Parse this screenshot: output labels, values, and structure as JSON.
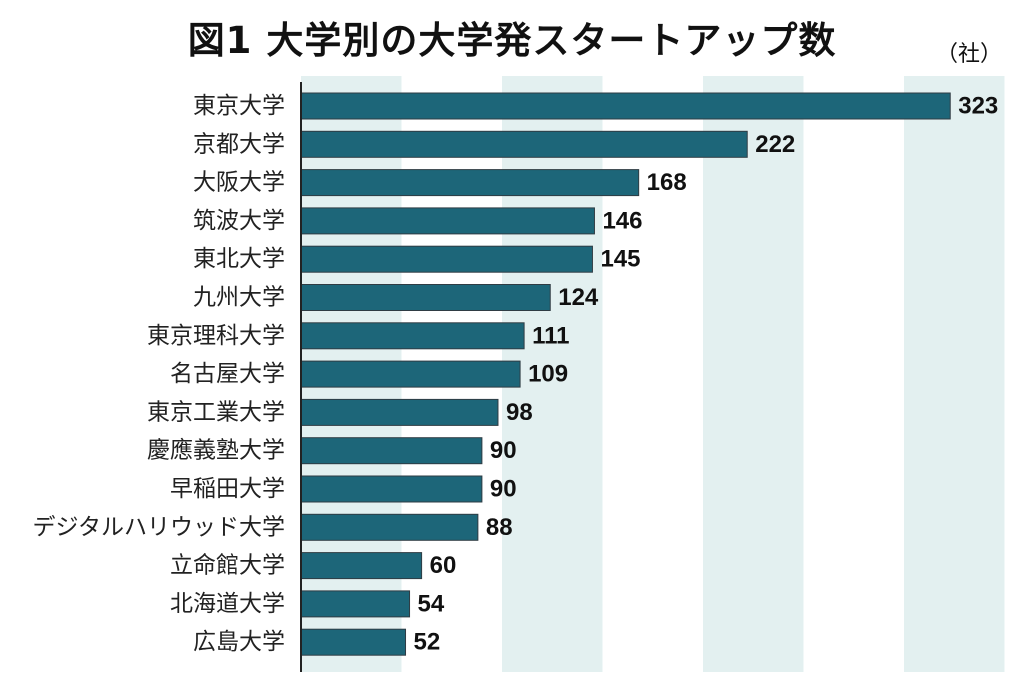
{
  "chart_data": {
    "type": "bar",
    "orientation": "horizontal",
    "title": "図1 大学別の大学発スタートアップ数",
    "unit_label": "（社）",
    "categories": [
      "東京大学",
      "京都大学",
      "大阪大学",
      "筑波大学",
      "東北大学",
      "九州大学",
      "東京理科大学",
      "名古屋大学",
      "東京工業大学",
      "慶應義塾大学",
      "早稲田大学",
      "デジタルハリウッド大学",
      "立命館大学",
      "北海道大学",
      "広島大学"
    ],
    "values": [
      323,
      222,
      168,
      146,
      145,
      124,
      111,
      109,
      98,
      90,
      90,
      88,
      60,
      54,
      52
    ],
    "xlim": [
      0,
      350
    ],
    "band_interval": 50,
    "grid": false,
    "legend": "none",
    "bar_color": "#1d6679",
    "band_color": "#e3f0f0"
  }
}
